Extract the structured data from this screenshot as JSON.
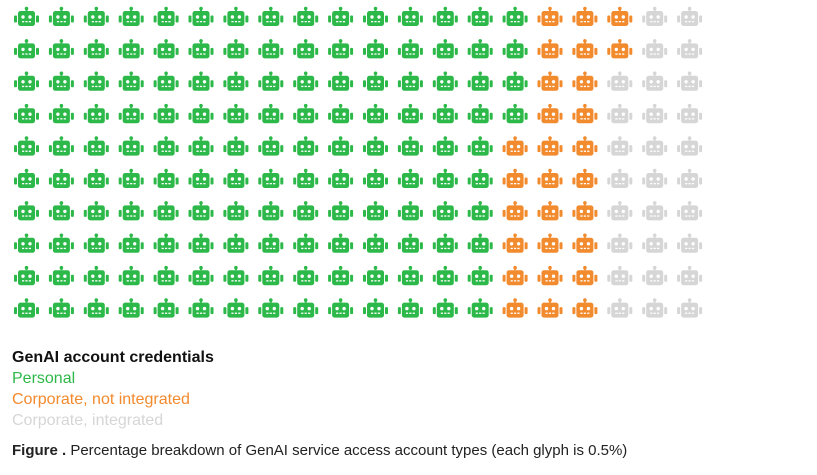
{
  "chart_data": {
    "type": "waffle",
    "rows": 10,
    "columns": 20,
    "fill_order": "column-major, top-to-bottom then left-to-right",
    "glyph_icon": "robot-icon",
    "glyph_value_percent": 0.5,
    "legend_title": "GenAI account credentials",
    "series": [
      {
        "name": "Personal",
        "glyph_count": 144,
        "percent": 72.0,
        "color": "#2db84a"
      },
      {
        "name": "Corporate, not integrated",
        "glyph_count": 28,
        "percent": 14.0,
        "color": "#f28a2e"
      },
      {
        "name": "Corporate, integrated",
        "glyph_count": 28,
        "percent": 14.0,
        "color": "#d6d6d6"
      }
    ],
    "caption_label": "Figure .",
    "caption_text": " Percentage breakdown of GenAI service access account types (each glyph is 0.5%)"
  }
}
